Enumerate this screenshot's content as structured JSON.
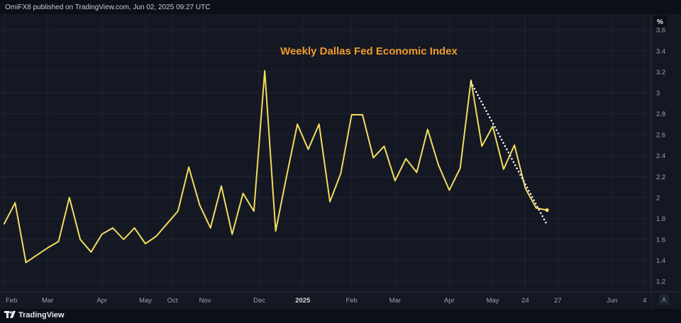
{
  "header": {
    "publisher_text": "OmiFX8 published on TradingView.com, Jun 02, 2025 09:27 UTC"
  },
  "footer": {
    "brand_label": "TradingView",
    "brand_icon": "tradingview-logo-icon"
  },
  "price_axis": {
    "unit_label": "%",
    "auto_label": "A"
  },
  "colors": {
    "background": "#141823",
    "line": "#f2dc5d",
    "title": "#f0992a",
    "trend": "#ffffff",
    "grid": "#1e2431",
    "axis_text": "#9aa0ad"
  },
  "chart_data": {
    "type": "line",
    "title": "Weekly Dallas Fed Economic Index",
    "ylim": [
      1.1,
      3.75
    ],
    "grid": true,
    "y_ticks": [
      1.2,
      1.4,
      1.6,
      1.8,
      2,
      2.2,
      2.4,
      2.6,
      2.8,
      3,
      3.2,
      3.4,
      3.6
    ],
    "y_tick_labels": [
      "1.2",
      "1.4",
      "1.6",
      "1.8",
      "2",
      "2.2",
      "2.4",
      "2.6",
      "2.8",
      "3",
      "3.2",
      "3.4",
      "3.6"
    ],
    "x_ticks": [
      {
        "label": "Feb",
        "index": 0,
        "bold": false
      },
      {
        "label": "Mar",
        "index": 4,
        "bold": false
      },
      {
        "label": "Apr",
        "index": 9,
        "bold": false
      },
      {
        "label": "May",
        "index": 13,
        "bold": false
      },
      {
        "label": "Oct",
        "index": 15.5,
        "bold": false
      },
      {
        "label": "Nov",
        "index": 18.5,
        "bold": false
      },
      {
        "label": "Dec",
        "index": 23.5,
        "bold": false
      },
      {
        "label": "2025",
        "index": 27.5,
        "bold": true
      },
      {
        "label": "Feb",
        "index": 32,
        "bold": false
      },
      {
        "label": "Mar",
        "index": 36,
        "bold": false
      },
      {
        "label": "Apr",
        "index": 41,
        "bold": false
      },
      {
        "label": "May",
        "index": 45,
        "bold": false
      },
      {
        "label": "24",
        "index": 48,
        "bold": false
      },
      {
        "label": "27",
        "index": 51,
        "bold": false
      },
      {
        "label": "Jun",
        "index": 56,
        "bold": false
      },
      {
        "label": "4",
        "index": 59,
        "bold": false
      }
    ],
    "series": [
      {
        "values": [
          1.75,
          1.95,
          1.38,
          1.45,
          1.52,
          1.58,
          2.0,
          1.6,
          1.48,
          1.65,
          1.71,
          1.6,
          1.71,
          1.56,
          1.63,
          1.75,
          1.87,
          2.29,
          1.93,
          1.71,
          2.11,
          1.65,
          2.04,
          1.87,
          3.21,
          1.68,
          2.2,
          2.7,
          2.46,
          2.7,
          1.96,
          2.23,
          2.79,
          2.79,
          2.38,
          2.49,
          2.16,
          2.37,
          2.24,
          2.65,
          2.31,
          2.07,
          2.28,
          3.12,
          2.49,
          2.68,
          2.27,
          2.5,
          2.09,
          1.9,
          1.88
        ]
      }
    ],
    "trendline": {
      "from": [
        43,
        3.1
      ],
      "to": [
        50,
        1.74
      ]
    }
  }
}
